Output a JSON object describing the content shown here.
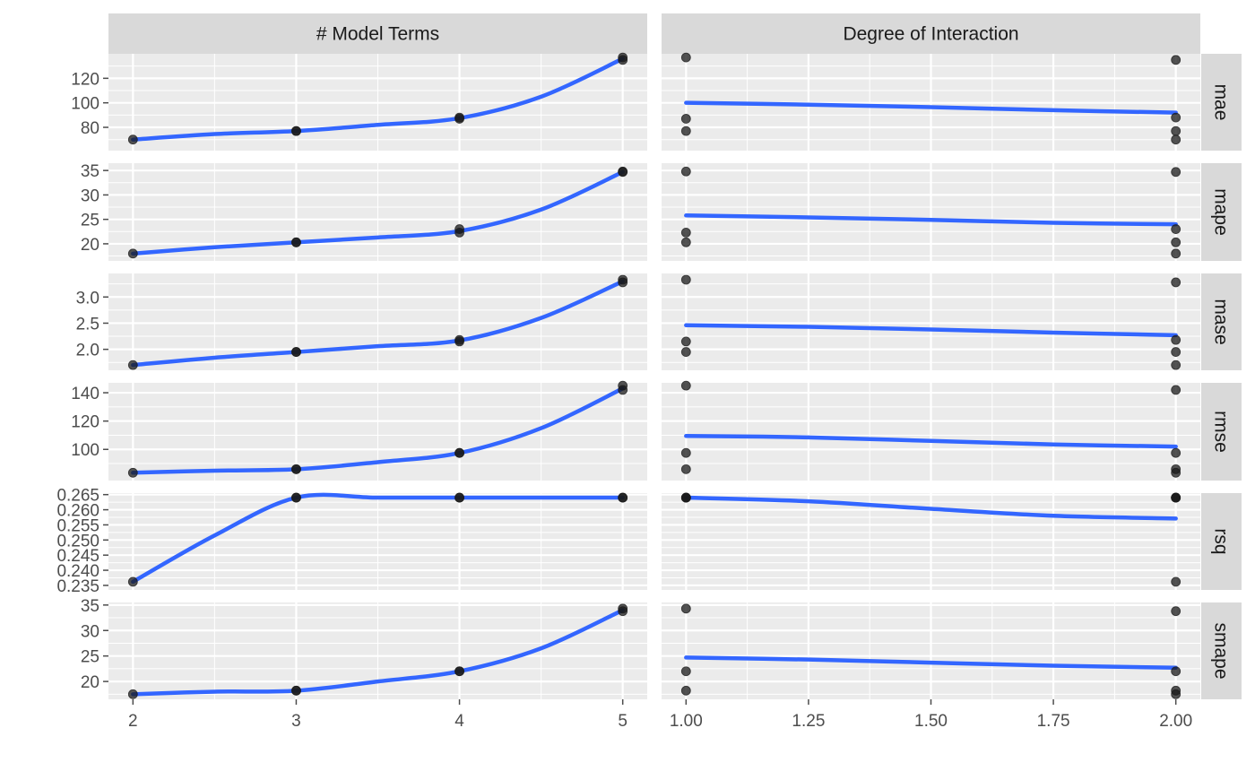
{
  "chart_data": {
    "type": "scatter",
    "columns": [
      {
        "key": "num_terms",
        "strip": "# Model Terms",
        "xlim": [
          1.85,
          5.15
        ],
        "ticks": [
          2,
          3,
          4,
          5
        ],
        "tick_labels": [
          "2",
          "3",
          "4",
          "5"
        ],
        "minor": [
          2.5,
          3.5,
          4.5
        ]
      },
      {
        "key": "prod_degree",
        "strip": "Degree of Interaction",
        "xlim": [
          0.95,
          2.05
        ],
        "ticks": [
          1,
          1.25,
          1.5,
          1.75,
          2
        ],
        "tick_labels": [
          "1.00",
          "1.25",
          "1.50",
          "1.75",
          "2.00"
        ],
        "minor": [
          1.125,
          1.375,
          1.625,
          1.875
        ]
      }
    ],
    "rows": [
      {
        "strip": "mae",
        "ylim": [
          61,
          140
        ],
        "yticks": [
          80,
          100,
          120
        ],
        "ytick_labels": [
          "80",
          "100",
          "120"
        ],
        "yminor": [
          70,
          90,
          110,
          130
        ],
        "points": [
          {
            "num_terms": 2,
            "prod_degree": 2,
            "value": 70
          },
          {
            "num_terms": 3,
            "prod_degree": 1,
            "value": 77
          },
          {
            "num_terms": 3,
            "prod_degree": 2,
            "value": 77
          },
          {
            "num_terms": 4,
            "prod_degree": 1,
            "value": 87
          },
          {
            "num_terms": 4,
            "prod_degree": 2,
            "value": 88
          },
          {
            "num_terms": 5,
            "prod_degree": 1,
            "value": 137
          },
          {
            "num_terms": 5,
            "prod_degree": 2,
            "value": 135
          }
        ],
        "smooth": [
          {
            "x": [
              2,
              2.5,
              3,
              3.5,
              4,
              4.5,
              5
            ],
            "y": [
              70,
              74.5,
              77,
              82,
              87.5,
              105,
              136
            ]
          },
          {
            "x": [
              1,
              1.25,
              1.5,
              1.75,
              2
            ],
            "y": [
              100,
              98.5,
              96.5,
              94,
              92
            ]
          }
        ]
      },
      {
        "strip": "mape",
        "ylim": [
          16.5,
          36.5
        ],
        "yticks": [
          20,
          25,
          30,
          35
        ],
        "ytick_labels": [
          "20",
          "25",
          "30",
          "35"
        ],
        "yminor": [
          17.5,
          22.5,
          27.5,
          32.5
        ],
        "points": [
          {
            "num_terms": 2,
            "prod_degree": 2,
            "value": 18
          },
          {
            "num_terms": 3,
            "prod_degree": 1,
            "value": 20.3
          },
          {
            "num_terms": 3,
            "prod_degree": 2,
            "value": 20.3
          },
          {
            "num_terms": 4,
            "prod_degree": 1,
            "value": 22.3
          },
          {
            "num_terms": 4,
            "prod_degree": 2,
            "value": 23
          },
          {
            "num_terms": 5,
            "prod_degree": 1,
            "value": 34.8
          },
          {
            "num_terms": 5,
            "prod_degree": 2,
            "value": 34.7
          }
        ],
        "smooth": [
          {
            "x": [
              2,
              2.5,
              3,
              3.5,
              4,
              4.5,
              5
            ],
            "y": [
              18,
              19.3,
              20.3,
              21.3,
              22.6,
              27,
              34.7
            ]
          },
          {
            "x": [
              1,
              1.25,
              1.5,
              1.75,
              2
            ],
            "y": [
              25.8,
              25.4,
              24.9,
              24.3,
              24
            ]
          }
        ]
      },
      {
        "strip": "mase",
        "ylim": [
          1.6,
          3.45
        ],
        "yticks": [
          2.0,
          2.5,
          3.0
        ],
        "ytick_labels": [
          "2.0",
          "2.5",
          "3.0"
        ],
        "yminor": [
          1.75,
          2.25,
          2.75,
          3.25
        ],
        "points": [
          {
            "num_terms": 2,
            "prod_degree": 2,
            "value": 1.7
          },
          {
            "num_terms": 3,
            "prod_degree": 1,
            "value": 1.95
          },
          {
            "num_terms": 3,
            "prod_degree": 2,
            "value": 1.95
          },
          {
            "num_terms": 4,
            "prod_degree": 1,
            "value": 2.15
          },
          {
            "num_terms": 4,
            "prod_degree": 2,
            "value": 2.18
          },
          {
            "num_terms": 5,
            "prod_degree": 1,
            "value": 3.33
          },
          {
            "num_terms": 5,
            "prod_degree": 2,
            "value": 3.28
          }
        ],
        "smooth": [
          {
            "x": [
              2,
              2.5,
              3,
              3.5,
              4,
              4.5,
              5
            ],
            "y": [
              1.7,
              1.84,
              1.95,
              2.06,
              2.17,
              2.6,
              3.3
            ]
          },
          {
            "x": [
              1,
              1.25,
              1.5,
              1.75,
              2
            ],
            "y": [
              2.46,
              2.43,
              2.38,
              2.32,
              2.27
            ]
          }
        ]
      },
      {
        "strip": "rmse",
        "ylim": [
          78,
          147
        ],
        "yticks": [
          100,
          120,
          140
        ],
        "ytick_labels": [
          "100",
          "120",
          "140"
        ],
        "yminor": [
          90,
          110,
          130
        ],
        "points": [
          {
            "num_terms": 2,
            "prod_degree": 2,
            "value": 83.5
          },
          {
            "num_terms": 3,
            "prod_degree": 1,
            "value": 86
          },
          {
            "num_terms": 3,
            "prod_degree": 2,
            "value": 86
          },
          {
            "num_terms": 4,
            "prod_degree": 1,
            "value": 97.5
          },
          {
            "num_terms": 4,
            "prod_degree": 2,
            "value": 97.5
          },
          {
            "num_terms": 5,
            "prod_degree": 1,
            "value": 145
          },
          {
            "num_terms": 5,
            "prod_degree": 2,
            "value": 142
          }
        ],
        "smooth": [
          {
            "x": [
              2,
              2.5,
              3,
              3.5,
              4,
              4.5,
              5
            ],
            "y": [
              83.5,
              85,
              86,
              91,
              97.5,
              115,
              143
            ]
          },
          {
            "x": [
              1,
              1.25,
              1.5,
              1.75,
              2
            ],
            "y": [
              109.5,
              108.5,
              106,
              103.5,
              102
            ]
          }
        ]
      },
      {
        "strip": "rsq",
        "ylim": [
          0.2335,
          0.2655
        ],
        "yticks": [
          0.235,
          0.24,
          0.245,
          0.25,
          0.255,
          0.26,
          0.265
        ],
        "ytick_labels": [
          "0.235",
          "0.240",
          "0.245",
          "0.250",
          "0.255",
          "0.260",
          "0.265"
        ],
        "yminor": [
          0.2375,
          0.2425,
          0.2475,
          0.2525,
          0.2575,
          0.2625
        ],
        "points": [
          {
            "num_terms": 2,
            "prod_degree": 2,
            "value": 0.2362
          },
          {
            "num_terms": 3,
            "prod_degree": 1,
            "value": 0.264
          },
          {
            "num_terms": 3,
            "prod_degree": 2,
            "value": 0.264
          },
          {
            "num_terms": 4,
            "prod_degree": 1,
            "value": 0.264
          },
          {
            "num_terms": 4,
            "prod_degree": 2,
            "value": 0.264
          },
          {
            "num_terms": 5,
            "prod_degree": 1,
            "value": 0.264
          },
          {
            "num_terms": 5,
            "prod_degree": 2,
            "value": 0.264
          }
        ],
        "smooth": [
          {
            "x": [
              2,
              2.5,
              3,
              3.5,
              4,
              4.5,
              5
            ],
            "y": [
              0.2362,
              0.2515,
              0.264,
              0.264,
              0.264,
              0.264,
              0.264
            ]
          },
          {
            "x": [
              1,
              1.25,
              1.5,
              1.75,
              2
            ],
            "y": [
              0.264,
              0.2628,
              0.2603,
              0.258,
              0.2571
            ]
          }
        ]
      },
      {
        "strip": "smape",
        "ylim": [
          16.5,
          35.5
        ],
        "yticks": [
          20,
          25,
          30,
          35
        ],
        "ytick_labels": [
          "20",
          "25",
          "30",
          "35"
        ],
        "yminor": [
          17.5,
          22.5,
          27.5,
          32.5
        ],
        "points": [
          {
            "num_terms": 2,
            "prod_degree": 2,
            "value": 17.5
          },
          {
            "num_terms": 3,
            "prod_degree": 1,
            "value": 18.2
          },
          {
            "num_terms": 3,
            "prod_degree": 2,
            "value": 18.2
          },
          {
            "num_terms": 4,
            "prod_degree": 1,
            "value": 22
          },
          {
            "num_terms": 4,
            "prod_degree": 2,
            "value": 22
          },
          {
            "num_terms": 5,
            "prod_degree": 1,
            "value": 34.3
          },
          {
            "num_terms": 5,
            "prod_degree": 2,
            "value": 33.8
          }
        ],
        "smooth": [
          {
            "x": [
              2,
              2.5,
              3,
              3.5,
              4,
              4.5,
              5
            ],
            "y": [
              17.5,
              18,
              18.2,
              20,
              22,
              26.5,
              34
            ]
          },
          {
            "x": [
              1,
              1.25,
              1.5,
              1.75,
              2
            ],
            "y": [
              24.7,
              24.3,
              23.7,
              23.1,
              22.7
            ]
          }
        ]
      }
    ],
    "colors": {
      "smooth": "#3366FF",
      "point": "#1a1a1a",
      "panel": "#EBEBEB",
      "strip": "#D9D9D9",
      "grid": "#FFFFFF",
      "tick": "#4d4d4d"
    },
    "grid": true
  }
}
